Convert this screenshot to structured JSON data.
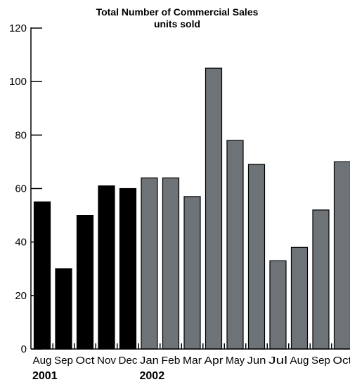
{
  "chart_data": {
    "type": "bar",
    "title": "Total Number of Commercial Sales",
    "subtitle": "units sold",
    "categories": [
      "Aug",
      "Sep",
      "Oct",
      "Nov",
      "Dec",
      "Jan",
      "Feb",
      "Mar",
      "Apr",
      "May",
      "Jun",
      "Jul",
      "Aug",
      "Sep",
      "Oct"
    ],
    "values": [
      55,
      30,
      50,
      61,
      60,
      64,
      64,
      57,
      105,
      78,
      69,
      33,
      38,
      52,
      70
    ],
    "bar_colors": [
      "#000000",
      "#000000",
      "#000000",
      "#000000",
      "#000000",
      "#6e7377",
      "#6e7377",
      "#6e7377",
      "#6e7377",
      "#6e7377",
      "#6e7377",
      "#6e7377",
      "#6e7377",
      "#6e7377",
      "#6e7377"
    ],
    "year_groups": [
      {
        "label": "2001",
        "start_index": 0
      },
      {
        "label": "2002",
        "start_index": 5
      }
    ],
    "y_ticks": [
      0,
      20,
      40,
      60,
      80,
      100,
      120
    ],
    "ylim": [
      0,
      120
    ],
    "xlabel": "",
    "ylabel": "",
    "grid": false,
    "legend": "none"
  }
}
